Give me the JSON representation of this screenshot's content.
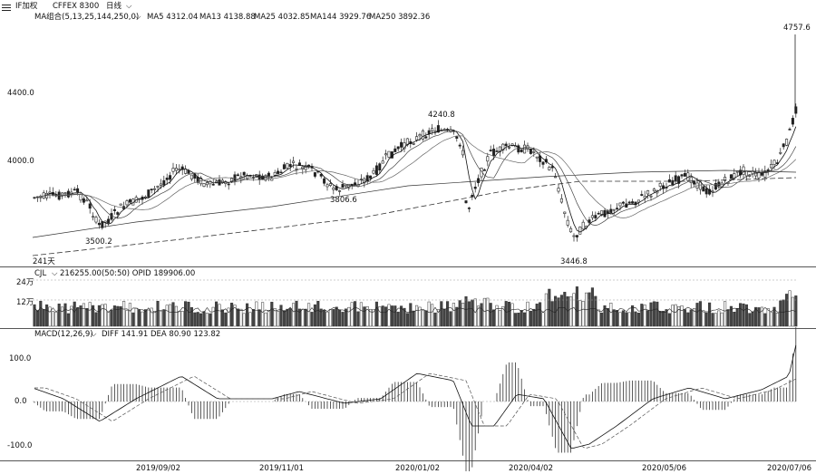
{
  "header": {
    "menu_icon": "hamburger-icon",
    "instrument": "IF加权",
    "exchange_code": "CFFEX 8300",
    "period": "日线",
    "period_dropdown_icon": "chevron-down-icon"
  },
  "price_panel": {
    "indicator_label": "MA组合(5,13,25,144,250,0)",
    "indicator_dropdown_icon": "chevron-down-icon",
    "ma_values": [
      {
        "label": "MA5",
        "value": "4312.04"
      },
      {
        "label": "MA13",
        "value": "4138.88"
      },
      {
        "label": "MA25",
        "value": "4032.85"
      },
      {
        "label": "MA144",
        "value": "3929.76"
      },
      {
        "label": "MA250",
        "value": "3892.36"
      }
    ],
    "y_axis": [
      "4400.0",
      "4000.0"
    ],
    "annotations": {
      "high_recent": "4757.6",
      "high_mid": "4240.8",
      "low_mid": "3806.6",
      "low_left": "3500.2",
      "low_2020": "3446.8"
    },
    "bar_count_label": "241天"
  },
  "oi_panel": {
    "indicator_label": "CJL",
    "indicator_dropdown_icon": "chevron-down-icon",
    "values_text": "216255.00(50:50)  OPID 189906.00",
    "y_axis": [
      "24万",
      "12万"
    ]
  },
  "macd_panel": {
    "indicator_label": "MACD(12,26,9)",
    "indicator_dropdown_icon": "chevron-down-icon",
    "values_text": "DIFF 141.91  DEA 80.90  123.82",
    "y_axis": [
      "100.0",
      "0.0",
      "-100.0"
    ]
  },
  "x_axis": [
    "2019/09/02",
    "2019/11/01",
    "2020/01/02",
    "2020/04/02",
    "2020/05/06",
    "2020/07/06"
  ]
}
